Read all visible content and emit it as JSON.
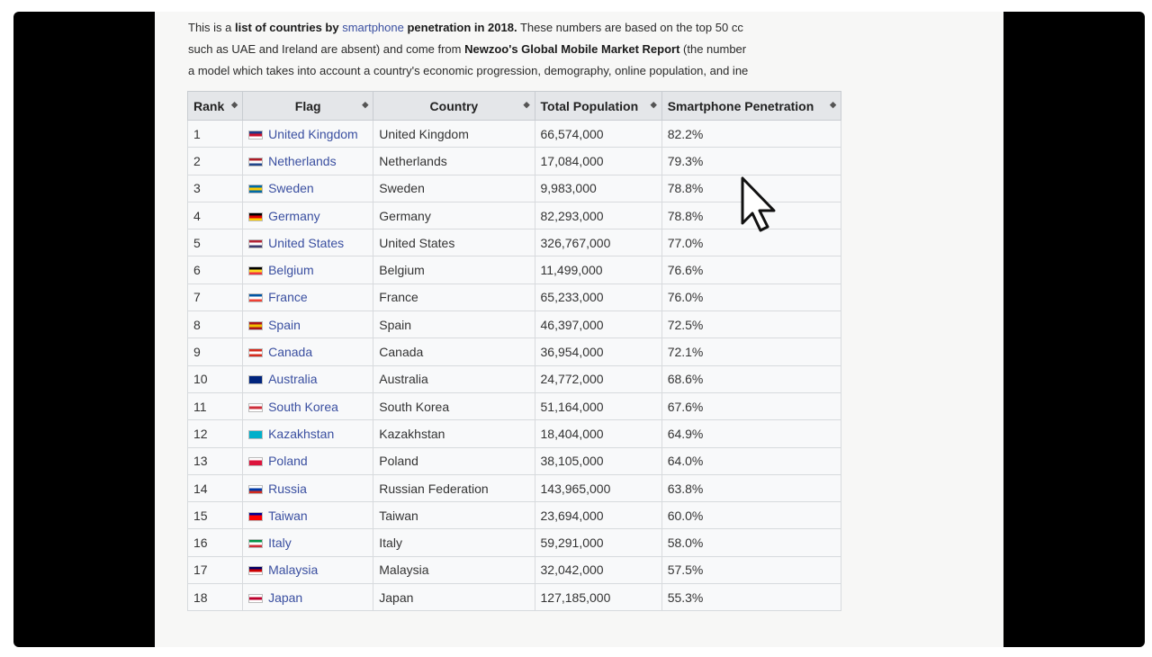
{
  "intro": {
    "line1_a": "This is a ",
    "line1_b": "list of countries by ",
    "line1_link": "smartphone",
    "line1_c": " penetration in 2018.",
    "line1_d": " These numbers are based on the top 50 cc",
    "line2_a": "such as UAE and Ireland are absent) and come from ",
    "line2_b": "Newzoo's Global Mobile Market Report",
    "line2_c": " (the number",
    "line3": "a model which takes into account a country's economic progression, demography, online population, and ine"
  },
  "table": {
    "headers": {
      "rank": "Rank",
      "flag": "Flag",
      "country": "Country",
      "population": "Total Population",
      "penetration": "Smartphone Penetration"
    },
    "sort_icon": "sort-arrows-icon",
    "rows": [
      {
        "rank": "1",
        "flag_link": "United Kingdom",
        "country": "United Kingdom",
        "population": "66,574,000",
        "penetration": "82.2%",
        "flag_colors": [
          "#1f3a8a",
          "#c8102e",
          "#ffffff"
        ]
      },
      {
        "rank": "2",
        "flag_link": "Netherlands",
        "country": "Netherlands",
        "population": "17,084,000",
        "penetration": "79.3%",
        "flag_colors": [
          "#ae1c28",
          "#ffffff",
          "#21468b"
        ]
      },
      {
        "rank": "3",
        "flag_link": "Sweden",
        "country": "Sweden",
        "population": "9,983,000",
        "penetration": "78.8%",
        "flag_colors": [
          "#006aa7",
          "#fecc00",
          "#006aa7"
        ]
      },
      {
        "rank": "4",
        "flag_link": "Germany",
        "country": "Germany",
        "population": "82,293,000",
        "penetration": "78.8%",
        "flag_colors": [
          "#000000",
          "#dd0000",
          "#ffce00"
        ]
      },
      {
        "rank": "5",
        "flag_link": "United States",
        "country": "United States",
        "population": "326,767,000",
        "penetration": "77.0%",
        "flag_colors": [
          "#b22234",
          "#ffffff",
          "#3c3b6e"
        ]
      },
      {
        "rank": "6",
        "flag_link": "Belgium",
        "country": "Belgium",
        "population": "11,499,000",
        "penetration": "76.6%",
        "flag_colors": [
          "#000000",
          "#fdda24",
          "#ef3340"
        ]
      },
      {
        "rank": "7",
        "flag_link": "France",
        "country": "France",
        "population": "65,233,000",
        "penetration": "76.0%",
        "flag_colors": [
          "#0055a4",
          "#ffffff",
          "#ef4135"
        ]
      },
      {
        "rank": "8",
        "flag_link": "Spain",
        "country": "Spain",
        "population": "46,397,000",
        "penetration": "72.5%",
        "flag_colors": [
          "#aa151b",
          "#f1bf00",
          "#aa151b"
        ]
      },
      {
        "rank": "9",
        "flag_link": "Canada",
        "country": "Canada",
        "population": "36,954,000",
        "penetration": "72.1%",
        "flag_colors": [
          "#d52b1e",
          "#ffffff",
          "#d52b1e"
        ]
      },
      {
        "rank": "10",
        "flag_link": "Australia",
        "country": "Australia",
        "population": "24,772,000",
        "penetration": "68.6%",
        "flag_colors": [
          "#00247d",
          "#00247d",
          "#00247d"
        ]
      },
      {
        "rank": "11",
        "flag_link": "South Korea",
        "country": "South Korea",
        "population": "51,164,000",
        "penetration": "67.6%",
        "flag_colors": [
          "#ffffff",
          "#cd2e3a",
          "#ffffff"
        ]
      },
      {
        "rank": "12",
        "flag_link": "Kazakhstan",
        "country": "Kazakhstan",
        "population": "18,404,000",
        "penetration": "64.9%",
        "flag_colors": [
          "#00afca",
          "#00afca",
          "#00afca"
        ]
      },
      {
        "rank": "13",
        "flag_link": "Poland",
        "country": "Poland",
        "population": "38,105,000",
        "penetration": "64.0%",
        "flag_colors": [
          "#ffffff",
          "#dc143c",
          "#dc143c"
        ]
      },
      {
        "rank": "14",
        "flag_link": "Russia",
        "country": "Russian Federation",
        "population": "143,965,000",
        "penetration": "63.8%",
        "flag_colors": [
          "#ffffff",
          "#0039a6",
          "#d52b1e"
        ]
      },
      {
        "rank": "15",
        "flag_link": "Taiwan",
        "country": "Taiwan",
        "population": "23,694,000",
        "penetration": "60.0%",
        "flag_colors": [
          "#000095",
          "#fe0000",
          "#fe0000"
        ]
      },
      {
        "rank": "16",
        "flag_link": "Italy",
        "country": "Italy",
        "population": "59,291,000",
        "penetration": "58.0%",
        "flag_colors": [
          "#009246",
          "#ffffff",
          "#ce2b37"
        ]
      },
      {
        "rank": "17",
        "flag_link": "Malaysia",
        "country": "Malaysia",
        "population": "32,042,000",
        "penetration": "57.5%",
        "flag_colors": [
          "#010066",
          "#cc0001",
          "#ffffff"
        ]
      },
      {
        "rank": "18",
        "flag_link": "Japan",
        "country": "Japan",
        "population": "127,185,000",
        "penetration": "55.3%",
        "flag_colors": [
          "#ffffff",
          "#bc002d",
          "#ffffff"
        ]
      }
    ]
  },
  "cursor": {
    "icon": "mouse-pointer-icon"
  }
}
